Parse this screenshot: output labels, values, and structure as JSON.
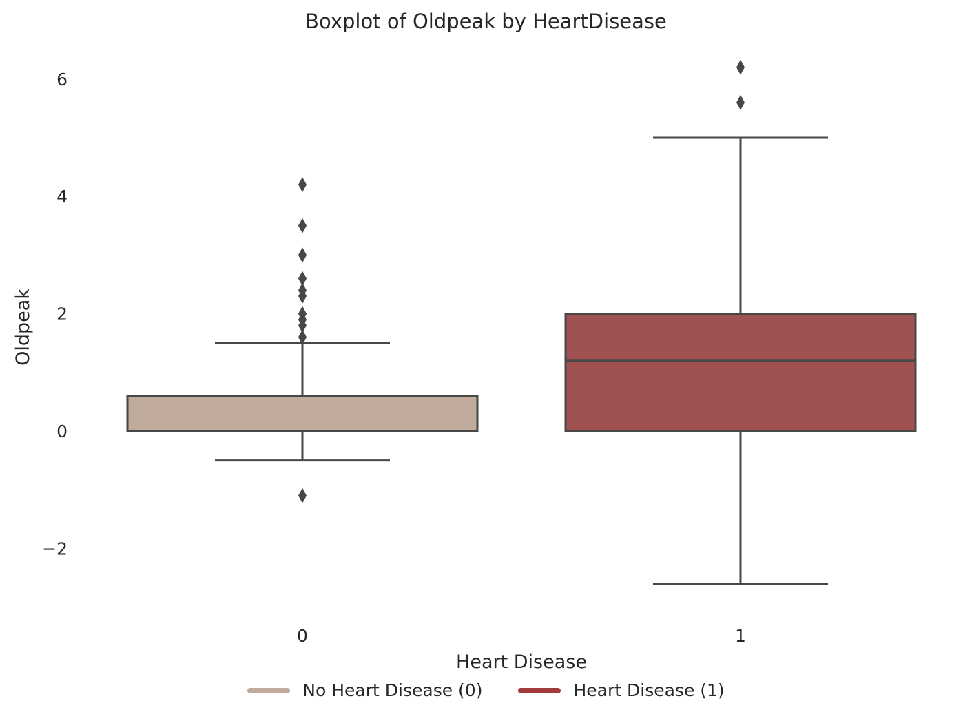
{
  "chart_data": {
    "type": "boxplot",
    "title": "Boxplot of Oldpeak by HeartDisease",
    "xlabel": "Heart Disease",
    "ylabel": "Oldpeak",
    "ylim": [
      -3.2,
      6.55
    ],
    "yticks": [
      -2,
      0,
      2,
      4,
      6
    ],
    "ytick_labels": [
      "−2",
      "0",
      "2",
      "4",
      "6"
    ],
    "grid": false,
    "legend_position": "bottom-center",
    "categories": [
      "0",
      "1"
    ],
    "boxes": [
      {
        "category": "0",
        "color": "#c0aa9b",
        "whisker_low": -0.5,
        "q1": 0.0,
        "median": 0.0,
        "q3": 0.6,
        "whisker_high": 1.5,
        "outliers": [
          4.2,
          3.5,
          3.0,
          3.0,
          2.6,
          2.4,
          2.3,
          2.0,
          2.0,
          1.9,
          1.8,
          1.6,
          1.6,
          -1.1
        ]
      },
      {
        "category": "1",
        "color": "#a05253",
        "whisker_low": -2.6,
        "q1": 0.0,
        "median": 1.2,
        "q3": 2.0,
        "whisker_high": 5.0,
        "outliers": [
          6.2,
          5.6
        ]
      }
    ],
    "legend": [
      {
        "label": "No Heart Disease (0)",
        "color": "#c0aa9b"
      },
      {
        "label": "Heart Disease (1)",
        "color": "#a03a3c"
      }
    ]
  }
}
